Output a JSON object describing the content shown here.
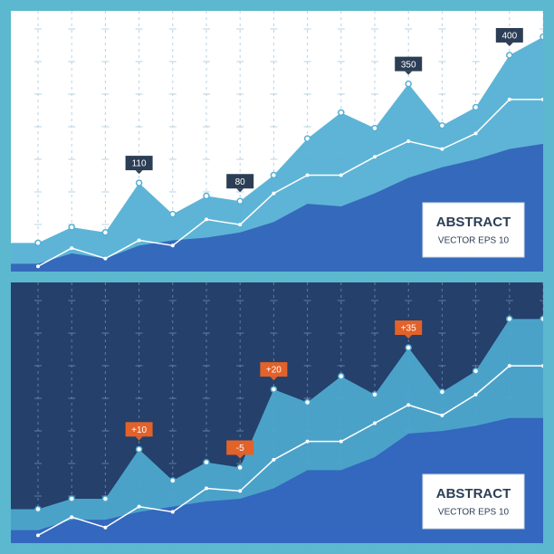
{
  "chart_data": [
    {
      "type": "area",
      "background": "#ffffff",
      "grid_color": "#b9d3e3",
      "annotation_color": "#2c3e55",
      "categories": [
        null,
        null,
        null,
        null,
        null,
        null,
        null,
        null,
        null,
        null,
        null,
        null,
        null,
        null,
        null,
        null
      ],
      "ylim": [
        0,
        100
      ],
      "series": [
        {
          "color": "#55b0d4",
          "values": [
            11,
            17,
            15,
            34,
            22,
            29,
            27,
            37,
            51,
            61,
            55,
            72,
            56,
            63,
            83,
            90
          ]
        },
        {
          "color": "#3160b8",
          "values": [
            3,
            7,
            5,
            10,
            12,
            13,
            15,
            19,
            26,
            25,
            30,
            36,
            40,
            43,
            47,
            49
          ]
        },
        {
          "color": "#ffffff",
          "line": true,
          "values": [
            2,
            9,
            5,
            12,
            10,
            20,
            18,
            30,
            37,
            37,
            44,
            50,
            47,
            53,
            66,
            66
          ]
        }
      ],
      "annotations": [
        {
          "text": "110",
          "index": 3
        },
        {
          "text": "80",
          "index": 6
        },
        {
          "text": "350",
          "index": 11
        },
        {
          "text": "400",
          "index": 14
        }
      ],
      "box": {
        "title": "ABSTRACT",
        "subtitle": "VECTOR EPS 10"
      }
    },
    {
      "type": "area",
      "background": "#24406b",
      "grid_color": "#5f7ea6",
      "annotation_color": "#e2622a",
      "categories": [
        null,
        null,
        null,
        null,
        null,
        null,
        null,
        null,
        null,
        null,
        null,
        null,
        null,
        null,
        null,
        null
      ],
      "ylim": [
        0,
        100
      ],
      "series": [
        {
          "color": "#4ea8cf",
          "values": [
            13,
            17,
            17,
            36,
            24,
            31,
            29,
            59,
            54,
            64,
            57,
            75,
            58,
            66,
            86,
            86
          ]
        },
        {
          "color": "#3162bd",
          "values": [
            5,
            9,
            9,
            12,
            14,
            16,
            17,
            21,
            28,
            28,
            33,
            42,
            43,
            45,
            48,
            48
          ]
        },
        {
          "color": "#ffffff",
          "line": true,
          "values": [
            3,
            10,
            6,
            14,
            12,
            21,
            20,
            32,
            39,
            39,
            46,
            53,
            49,
            57,
            68,
            68
          ]
        }
      ],
      "annotations": [
        {
          "text": "+10",
          "index": 3
        },
        {
          "text": "-5",
          "index": 6
        },
        {
          "text": "+20",
          "index": 7
        },
        {
          "text": "+35",
          "index": 11
        }
      ],
      "box": {
        "title": "ABSTRACT",
        "subtitle": "VECTOR EPS 10"
      }
    }
  ]
}
